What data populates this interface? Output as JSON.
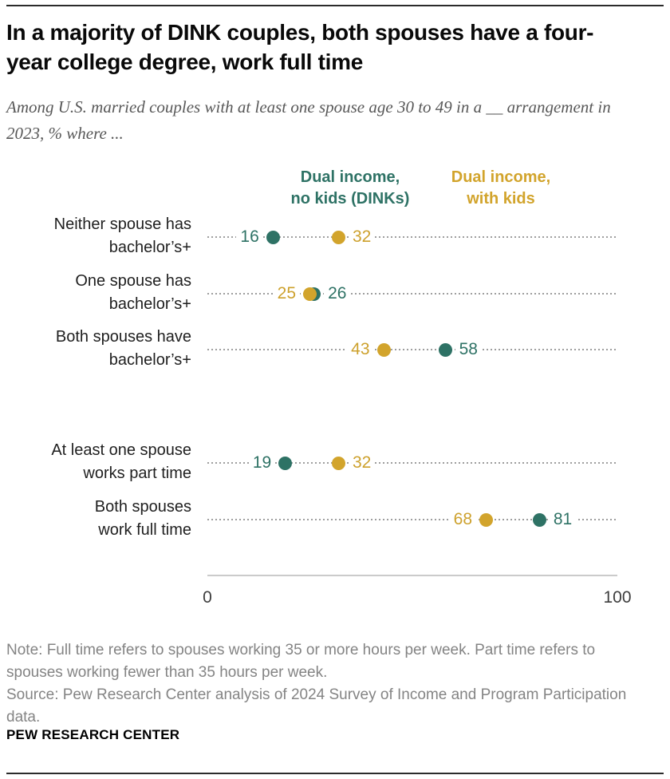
{
  "header": {
    "title": "In a majority of DINK couples, both spouses have a four-year college degree, work full time",
    "subtitle": "Among U.S. married couples with at least one spouse age 30 to 49 in a __ arrangement in 2023, % where ..."
  },
  "colors": {
    "teal": "#2e7265",
    "gold": "#d2a42c",
    "leader_dots": "#9e9e9e",
    "axis_line": "#cbcbcb",
    "note_text": "#848484"
  },
  "legend": {
    "items": [
      {
        "line1": "Dual income,",
        "line2": "no kids (DINKs)",
        "color_key": "teal"
      },
      {
        "line1": "Dual income,",
        "line2": "with kids",
        "color_key": "gold"
      }
    ]
  },
  "chart_data": {
    "type": "scatter",
    "title": "In a majority of DINK couples, both spouses have a four-year college degree, work full time",
    "subtitle": "Among U.S. married couples with at least one spouse age 30 to 49 in a __ arrangement in 2023, % where ...",
    "xlim": [
      0,
      100
    ],
    "x_ticks": [
      "0",
      "100"
    ],
    "grid": "dotted-leader-lines",
    "legend_position": "top",
    "categories": [
      [
        "Neither spouse has",
        "bachelor’s+"
      ],
      [
        "One spouse has",
        "bachelor’s+"
      ],
      [
        "Both spouses have",
        "bachelor’s+"
      ],
      [
        "At least one spouse",
        "works part time"
      ],
      [
        "Both spouses",
        "work full time"
      ]
    ],
    "series": [
      {
        "name": "Dual income, no kids (DINKs)",
        "color_key": "teal",
        "values": [
          16,
          26,
          58,
          19,
          81
        ]
      },
      {
        "name": "Dual income, with kids",
        "color_key": "gold",
        "values": [
          32,
          25,
          43,
          32,
          68
        ]
      }
    ]
  },
  "notes": {
    "note": "Note: Full time refers to spouses working 35 or more hours per week. Part time refers to spouses working fewer than 35 hours per week.",
    "source": "Source: Pew Research Center analysis of 2024 Survey of Income and Program Participation data."
  },
  "footer": {
    "brand": "PEW RESEARCH CENTER"
  }
}
